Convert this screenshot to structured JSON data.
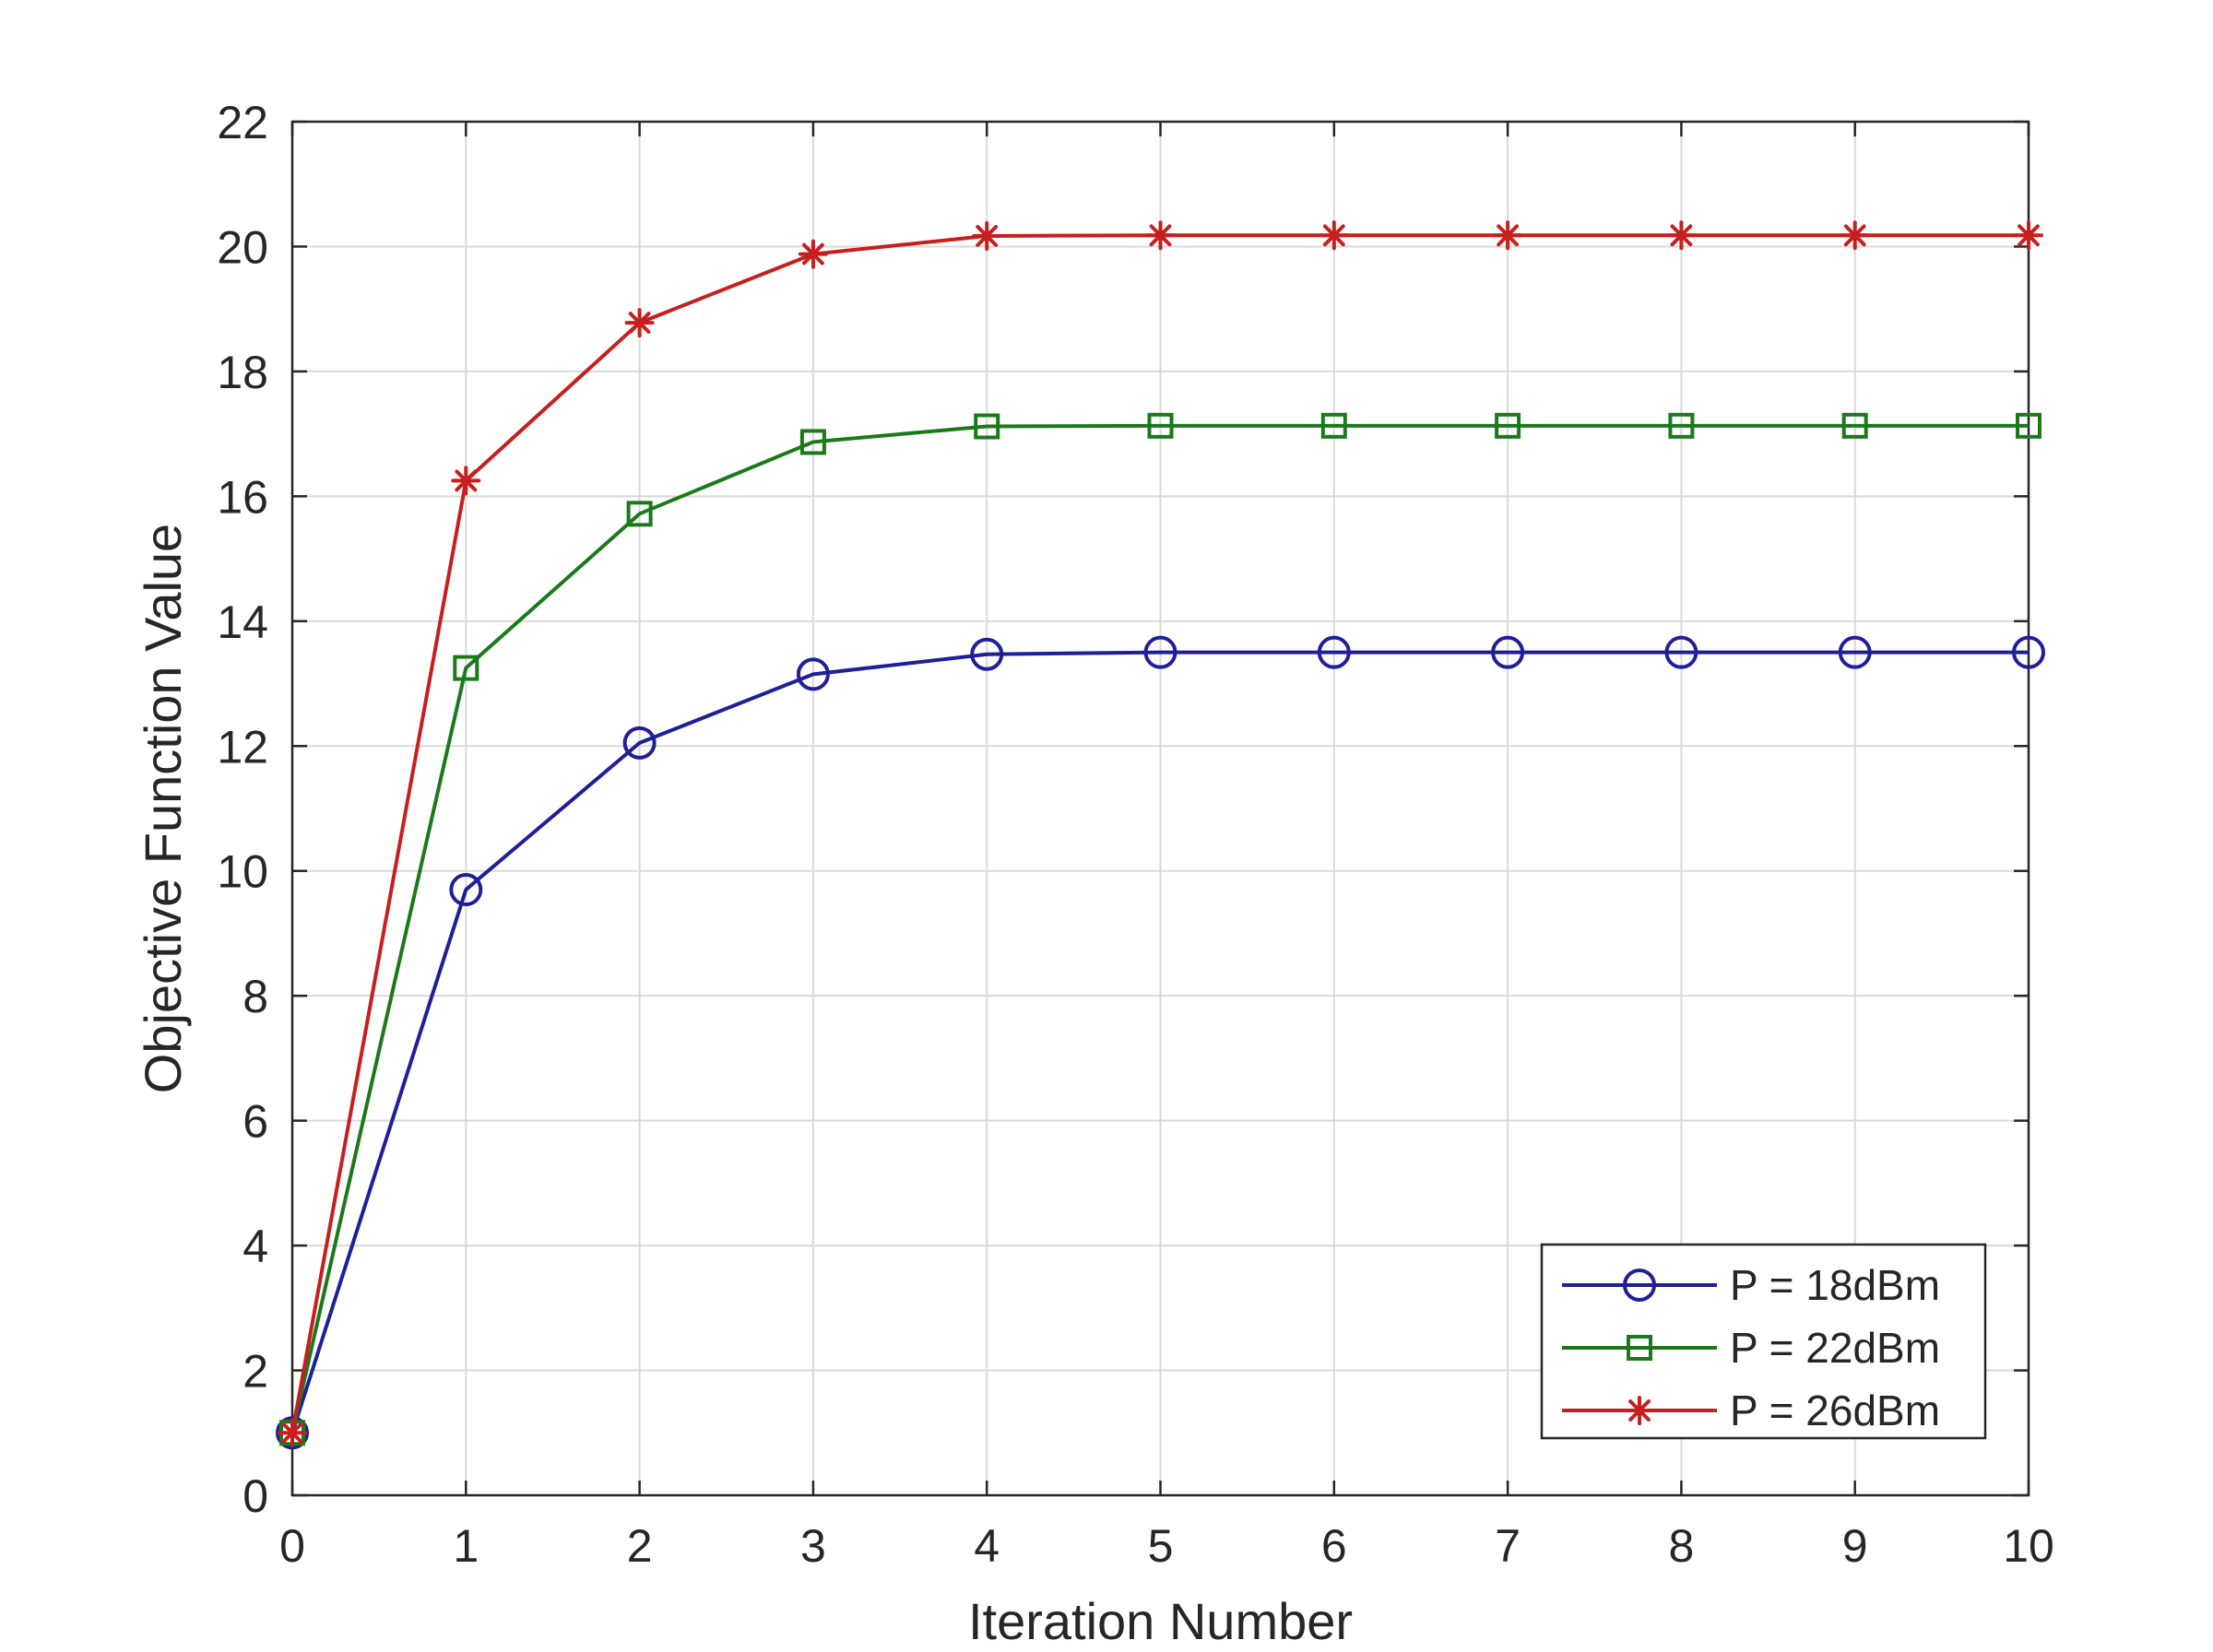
{
  "chart_data": {
    "type": "line",
    "title": "",
    "xlabel": "Iteration Number",
    "ylabel": "Objective Function Value",
    "xlim": [
      0,
      10
    ],
    "ylim": [
      0,
      22
    ],
    "xticks": [
      0,
      1,
      2,
      3,
      4,
      5,
      6,
      7,
      8,
      9,
      10
    ],
    "yticks": [
      0,
      2,
      4,
      6,
      8,
      10,
      12,
      14,
      16,
      18,
      20,
      22
    ],
    "grid": true,
    "legend_position": "bottom-right",
    "x": [
      0,
      1,
      2,
      3,
      4,
      5,
      6,
      7,
      8,
      9,
      10
    ],
    "series": [
      {
        "name": "P = 18dBm",
        "marker": "circle",
        "color": "#1f1f99",
        "values": [
          1.0,
          9.7,
          12.05,
          13.15,
          13.47,
          13.5,
          13.5,
          13.5,
          13.5,
          13.5,
          13.5
        ]
      },
      {
        "name": "P = 22dBm",
        "marker": "square",
        "color": "#1a7a1a",
        "values": [
          1.0,
          13.25,
          15.72,
          16.87,
          17.12,
          17.13,
          17.13,
          17.13,
          17.13,
          17.13,
          17.13
        ]
      },
      {
        "name": "P = 26dBm",
        "marker": "asterisk",
        "color": "#c81e1e",
        "values": [
          1.0,
          16.25,
          18.78,
          19.88,
          20.17,
          20.18,
          20.18,
          20.18,
          20.18,
          20.18,
          20.18
        ]
      }
    ]
  }
}
